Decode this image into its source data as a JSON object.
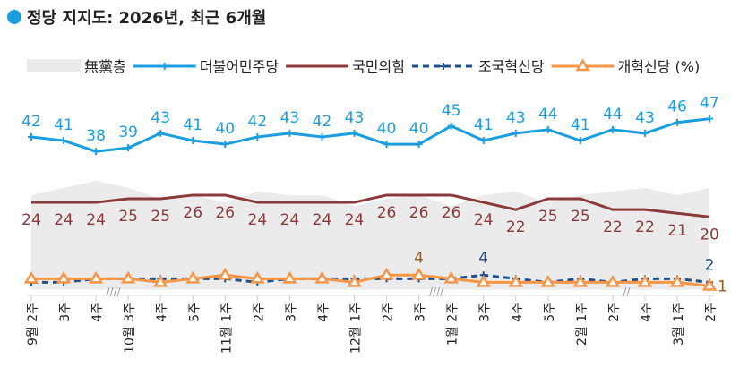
{
  "chart_data": {
    "type": "line",
    "title": "정당 지지도: 2026년, 최근 6개월",
    "categories": [
      "9월 2주",
      "3주",
      "4주",
      "10월 3주",
      "4주",
      "5주",
      "11월 1주",
      "2주",
      "3주",
      "4주",
      "12월 1주",
      "2주",
      "3주",
      "1월 2주",
      "3주",
      "4주",
      "5주",
      "2월 1주",
      "2주",
      "4주",
      "3월 1주",
      "2주"
    ],
    "ylim": [
      0,
      50
    ],
    "legend_position": "top",
    "series": [
      {
        "name": "無黨층",
        "type": "area",
        "color": "#ebebeb",
        "values": [
          26,
          28,
          30,
          28,
          25,
          26,
          24,
          27,
          26,
          26,
          23,
          25,
          26,
          23,
          26,
          27,
          24,
          26,
          27,
          28,
          26,
          28
        ]
      },
      {
        "name": "더불어민주당",
        "color": "#1a9ee0",
        "marker": "plus",
        "labels": "all",
        "values": [
          42,
          41,
          38,
          39,
          43,
          41,
          40,
          42,
          43,
          42,
          43,
          40,
          40,
          45,
          41,
          43,
          44,
          41,
          44,
          43,
          46,
          47
        ]
      },
      {
        "name": "국민의힘",
        "color": "#8b3a3a",
        "labels": "all",
        "values": [
          24,
          24,
          24,
          25,
          25,
          26,
          26,
          24,
          24,
          24,
          24,
          26,
          26,
          26,
          24,
          22,
          25,
          25,
          22,
          22,
          21,
          20
        ]
      },
      {
        "name": "조국혁신당",
        "color": "#1f4e89",
        "dashed": true,
        "marker": "plus",
        "values": [
          2,
          2,
          3,
          3,
          3,
          3,
          3,
          2,
          3,
          3,
          3,
          3,
          3,
          3,
          4,
          3,
          2,
          3,
          2,
          3,
          3,
          2
        ]
      },
      {
        "name": "개혁신당 (%)",
        "color": "#f79646",
        "marker": "triangle",
        "values": [
          3,
          3,
          3,
          3,
          2,
          3,
          4,
          3,
          3,
          3,
          2,
          4,
          4,
          3,
          2,
          2,
          2,
          2,
          2,
          2,
          2,
          1
        ]
      }
    ],
    "annotations": [
      {
        "series": "개혁신당 (%)",
        "index": 12,
        "text": "4"
      },
      {
        "series": "조국혁신당",
        "index": 14,
        "text": "4"
      },
      {
        "series": "조국혁신당",
        "index": 21,
        "text": "2"
      },
      {
        "series": "개혁신당 (%)",
        "index": 21,
        "text": "1"
      }
    ],
    "axis_breaks_after_index": [
      2,
      12,
      18
    ]
  }
}
